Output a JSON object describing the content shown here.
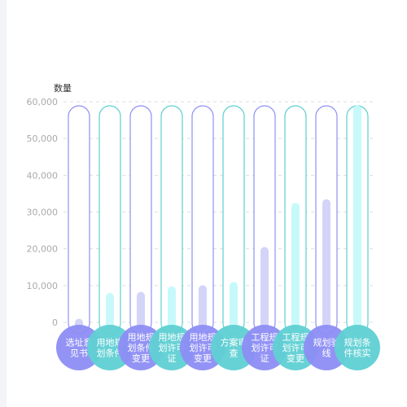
{
  "chart_data": {
    "type": "bar",
    "ylabel": "数量",
    "ylim": [
      0,
      60000
    ],
    "yticks": [
      "0",
      "10,000",
      "20,000",
      "30,000",
      "40,000",
      "50,000",
      "60,000"
    ],
    "grid": true,
    "categories": [
      [
        "选址意",
        "见书"
      ],
      [
        "用地规",
        "划条件"
      ],
      [
        "用地规",
        "划条件",
        "变更"
      ],
      [
        "用地规",
        "划许可",
        "证"
      ],
      [
        "用地规",
        "划许可",
        "变更"
      ],
      [
        "方案审",
        "查"
      ],
      [
        "工程规",
        "划许可",
        "证"
      ],
      [
        "工程规",
        "划许可",
        "变更"
      ],
      [
        "规划验",
        "线"
      ],
      [
        "规划条",
        "件核实"
      ]
    ],
    "values": [
      1000,
      8000,
      8300,
      9800,
      10100,
      11000,
      20500,
      32500,
      33500,
      59000
    ],
    "colors": {
      "purple_outline": "#8f8ff5",
      "teal_outline": "#5ecfcf",
      "purple_bar": "#d4d4f8",
      "teal_bar": "#c7f9fb",
      "purple_circle": "#8d8df4",
      "teal_circle": "#5fd0d3",
      "grid": "#dddddd"
    }
  }
}
